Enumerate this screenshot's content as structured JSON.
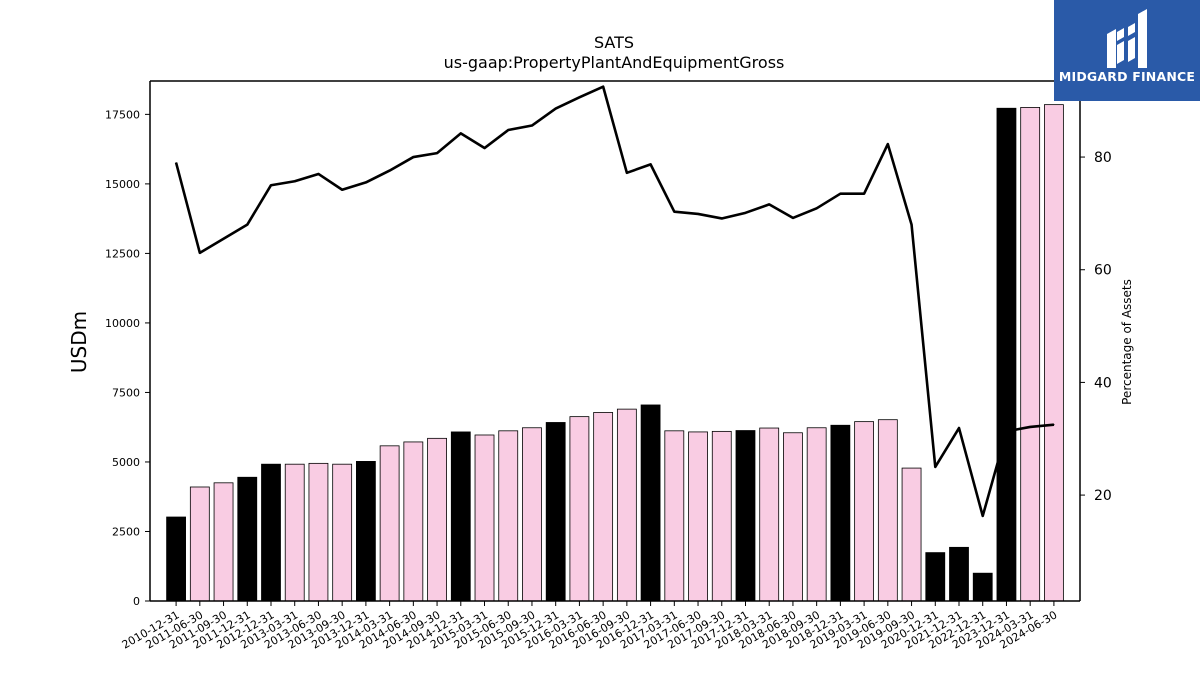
{
  "chart_data": {
    "type": "bar",
    "title": "SATS",
    "subtitle": "us-gaap:PropertyPlantAndEquipmentGross",
    "ylabel": "USDm",
    "y2label": "Percentage of Assets",
    "ylim": [
      0,
      18700
    ],
    "y_ticks": [
      0,
      2500,
      5000,
      7500,
      10000,
      12500,
      15000,
      17500
    ],
    "y2lim": [
      1.2,
      93.5
    ],
    "y2_ticks": [
      20,
      40,
      60,
      80
    ],
    "categories": [
      "2010-12-31",
      "2011-06-30",
      "2011-09-30",
      "2011-12-31",
      "2012-12-31",
      "2013-03-31",
      "2013-06-30",
      "2013-09-30",
      "2013-12-31",
      "2014-03-31",
      "2014-06-30",
      "2014-09-30",
      "2014-12-31",
      "2015-03-31",
      "2015-06-30",
      "2015-09-30",
      "2015-12-31",
      "2016-03-31",
      "2016-06-30",
      "2016-09-30",
      "2016-12-31",
      "2017-03-31",
      "2017-06-30",
      "2017-09-30",
      "2017-12-31",
      "2018-03-31",
      "2018-06-30",
      "2018-09-30",
      "2018-12-31",
      "2019-03-31",
      "2019-06-30",
      "2019-09-30",
      "2020-12-31",
      "2021-12-31",
      "2022-12-31",
      "2023-12-31",
      "2024-03-31",
      "2024-06-30"
    ],
    "series": [
      {
        "kind": "bar",
        "values": [
          3020,
          4100,
          4250,
          4450,
          4920,
          4920,
          4950,
          4920,
          5020,
          5580,
          5720,
          5850,
          6080,
          5970,
          6120,
          6230,
          6420,
          6630,
          6780,
          6900,
          7050,
          6120,
          6080,
          6100,
          6130,
          6220,
          6050,
          6230,
          6320,
          6450,
          6520,
          4780,
          1740,
          1930,
          1000,
          17720,
          17750,
          17850
        ],
        "annual": [
          true,
          false,
          false,
          true,
          true,
          false,
          false,
          false,
          true,
          false,
          false,
          false,
          true,
          false,
          false,
          false,
          true,
          false,
          false,
          false,
          true,
          false,
          false,
          false,
          true,
          false,
          false,
          false,
          true,
          false,
          false,
          false,
          true,
          true,
          true,
          true,
          false,
          false
        ]
      },
      {
        "kind": "line",
        "axis": "right",
        "values": [
          79,
          63,
          65.5,
          68,
          75,
          75.7,
          77,
          74.2,
          75.5,
          77.6,
          80,
          80.7,
          84.2,
          81.6,
          84.8,
          85.6,
          88.6,
          90.6,
          92.5,
          77.2,
          78.7,
          70.3,
          69.9,
          69.1,
          70.1,
          71.6,
          69.2,
          70.9,
          73.5,
          73.5,
          82.3,
          68,
          25,
          31.9,
          16.3,
          31.3,
          32.1,
          32.5
        ]
      }
    ],
    "colors": {
      "annual_bar": "#000000",
      "quarterly_bar": "#f9cce3",
      "bar_edge": "#000000",
      "line": "#000000",
      "logo_bg": "#2a5aa8",
      "logo_fg": "#ffffff"
    },
    "grid": false,
    "legend": "none"
  },
  "logo": {
    "text": "MIDGARD FINANCE",
    "icon": "midgard-logo-icon"
  }
}
